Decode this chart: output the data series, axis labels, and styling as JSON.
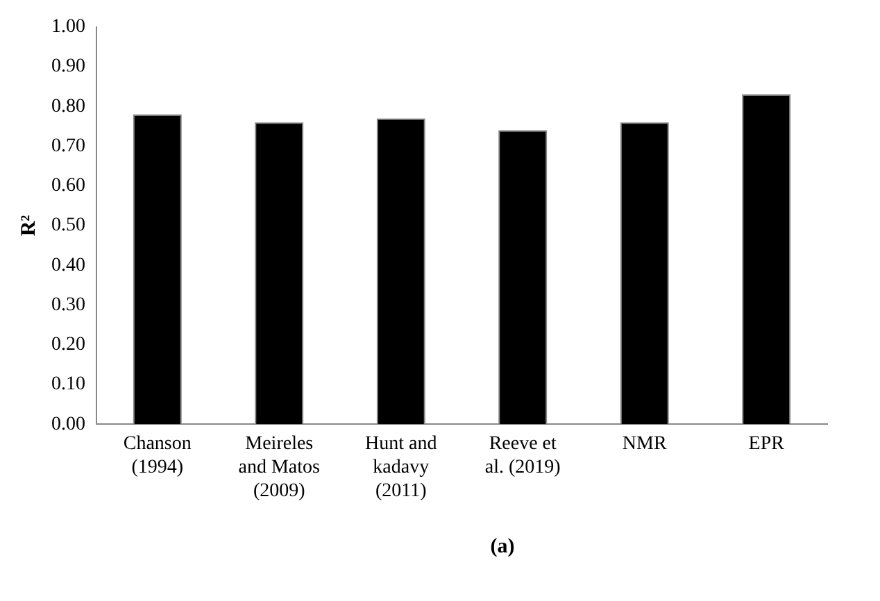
{
  "chart_data": {
    "type": "bar",
    "ylabel": "R²",
    "categories": [
      "Chanson\n(1994)",
      "Meireles\nand Matos\n(2009)",
      "Hunt and\nkadavy\n(2011)",
      "Reeve et\nal. (2019)",
      "NMR",
      "EPR"
    ],
    "values": [
      0.78,
      0.76,
      0.77,
      0.74,
      0.76,
      0.83
    ],
    "color": "#000000",
    "ylim": [
      0,
      1
    ],
    "yticks": [
      {
        "value": 0,
        "label": "0.00"
      },
      {
        "value": 0.1,
        "label": "0.10"
      },
      {
        "value": 0.2,
        "label": "0.20"
      },
      {
        "value": 0.3,
        "label": "0.30"
      },
      {
        "value": 0.4,
        "label": "0.40"
      },
      {
        "value": 0.5,
        "label": "0.50"
      },
      {
        "value": 0.6,
        "label": "0.60"
      },
      {
        "value": 0.7,
        "label": "0.70"
      },
      {
        "value": 0.8,
        "label": "0.80"
      },
      {
        "value": 0.9,
        "label": "0.90"
      },
      {
        "value": 1,
        "label": "1.00"
      }
    ],
    "grid": false,
    "legend": false,
    "annotations": [
      "(a)"
    ]
  }
}
